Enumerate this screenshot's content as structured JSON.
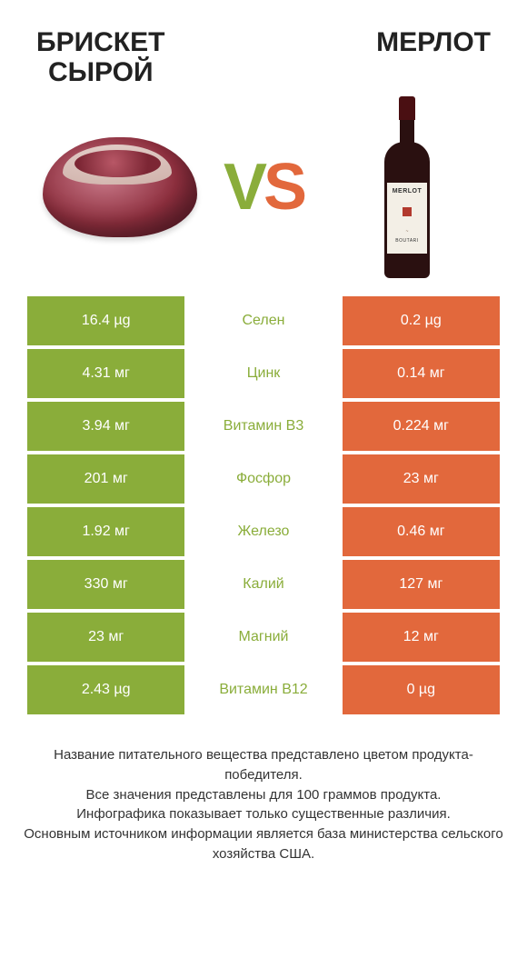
{
  "header": {
    "left_title": "БРИСКЕТ\nСЫРОЙ",
    "right_title": "МЕРЛОТ",
    "vs_v": "V",
    "vs_s": "S"
  },
  "wine_label": {
    "brand": "MERLOT",
    "maker": "BOUTARI"
  },
  "colors": {
    "left": "#8aad3a",
    "right": "#e2683c"
  },
  "rows": [
    {
      "nutrient": "Селен",
      "left": "16.4 µg",
      "right": "0.2 µg",
      "winner": "left"
    },
    {
      "nutrient": "Цинк",
      "left": "4.31 мг",
      "right": "0.14 мг",
      "winner": "left"
    },
    {
      "nutrient": "Витамин B3",
      "left": "3.94 мг",
      "right": "0.224 мг",
      "winner": "left"
    },
    {
      "nutrient": "Фосфор",
      "left": "201 мг",
      "right": "23 мг",
      "winner": "left"
    },
    {
      "nutrient": "Железо",
      "left": "1.92 мг",
      "right": "0.46 мг",
      "winner": "left"
    },
    {
      "nutrient": "Калий",
      "left": "330 мг",
      "right": "127 мг",
      "winner": "left"
    },
    {
      "nutrient": "Магний",
      "left": "23 мг",
      "right": "12 мг",
      "winner": "left"
    },
    {
      "nutrient": "Витамин B12",
      "left": "2.43 µg",
      "right": "0 µg",
      "winner": "left"
    }
  ],
  "footer": {
    "line1": "Название питательного вещества представлено цветом продукта-победителя.",
    "line2": "Все значения представлены для 100 граммов продукта.",
    "line3": "Инфографика показывает только существенные различия.",
    "line4": "Основным источником информации является база министерства сельского хозяйства США."
  }
}
